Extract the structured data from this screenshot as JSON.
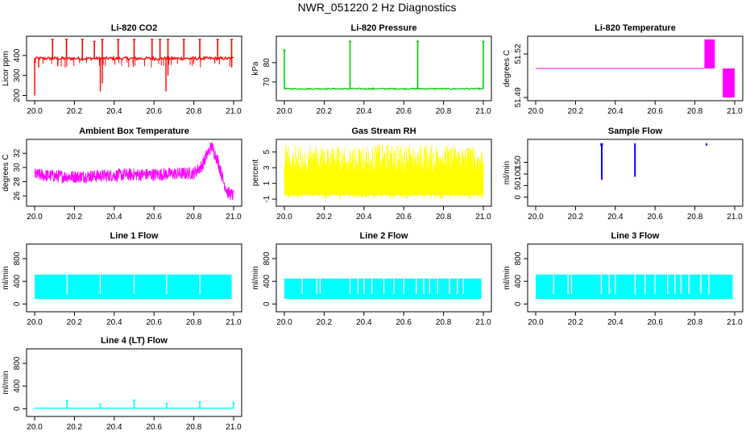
{
  "title": "NWR_051220  2 Hz Diagnostics",
  "colors": {
    "red": "#ff0000",
    "green": "#00cc00",
    "magenta": "#ff00ff",
    "yellow": "#ffff00",
    "blue": "#0000ff",
    "cyan": "#00ffff",
    "axis": "#000000",
    "background": "#ffffff"
  },
  "chart_data": [
    {
      "type": "line",
      "title": "Li-820 CO2",
      "ylabel": "Licor ppm",
      "color": "red",
      "xlim": [
        20.0,
        21.0
      ],
      "ylim": [
        190,
        480
      ],
      "xticks": [
        "20.0",
        "20.2",
        "20.4",
        "20.6",
        "20.8",
        "21.0"
      ],
      "yticks": [
        200,
        300,
        400
      ],
      "baseline": 385,
      "noise": 8,
      "spikes_up": [
        [
          20.09,
          480
        ],
        [
          20.16,
          480
        ],
        [
          20.24,
          480
        ],
        [
          20.3,
          470
        ],
        [
          20.34,
          480
        ],
        [
          20.42,
          480
        ],
        [
          20.5,
          480
        ],
        [
          20.59,
          480
        ],
        [
          20.63,
          480
        ],
        [
          20.67,
          480
        ],
        [
          20.75,
          480
        ],
        [
          20.83,
          480
        ],
        [
          20.92,
          480
        ],
        [
          20.99,
          480
        ]
      ],
      "spikes_down": [
        [
          20.0,
          200
        ],
        [
          20.02,
          340
        ],
        [
          20.33,
          220
        ],
        [
          20.34,
          260
        ],
        [
          20.66,
          220
        ],
        [
          20.67,
          300
        ],
        [
          20.99,
          340
        ]
      ]
    },
    {
      "type": "line",
      "title": "Li-820 Pressure",
      "ylabel": "kPa",
      "color": "green",
      "xlim": [
        20.0,
        21.0
      ],
      "ylim": [
        62,
        92
      ],
      "xticks": [
        "20.0",
        "20.2",
        "20.4",
        "20.6",
        "20.8",
        "21.0"
      ],
      "yticks": [
        70,
        80
      ],
      "baseline": 66.5,
      "noise": 0.3,
      "spikes_up": [
        [
          20.0,
          86.5
        ],
        [
          20.33,
          91
        ],
        [
          20.67,
          91
        ],
        [
          21.0,
          91
        ]
      ],
      "spikes_down": []
    },
    {
      "type": "line",
      "title": "Li-820 Temperature",
      "ylabel": "degrees C",
      "color": "magenta",
      "xlim": [
        20.0,
        21.0
      ],
      "ylim": [
        51.49,
        51.53
      ],
      "xticks": [
        "20.0",
        "20.2",
        "20.4",
        "20.6",
        "20.8",
        "21.0"
      ],
      "yticks": [
        51.49,
        51.52
      ],
      "segments": [
        {
          "x": [
            20.0,
            20.848
          ],
          "y": 51.51
        },
        {
          "x": [
            20.848,
            20.9
          ],
          "y": [
            51.51,
            51.53
          ]
        },
        {
          "x": [
            20.94,
            21.0
          ],
          "y": [
            51.49,
            51.51
          ]
        }
      ]
    },
    {
      "type": "line",
      "title": "Ambient Box Temperature",
      "ylabel": "degrees C",
      "color": "magenta",
      "xlim": [
        20.0,
        21.0
      ],
      "ylim": [
        25,
        33.5
      ],
      "xticks": [
        "20.0",
        "20.2",
        "20.4",
        "20.6",
        "20.8",
        "21.0"
      ],
      "yticks": [
        26,
        28,
        30,
        32
      ],
      "profile": [
        [
          20.0,
          29.0
        ],
        [
          20.1,
          28.8
        ],
        [
          20.2,
          28.7
        ],
        [
          20.3,
          28.8
        ],
        [
          20.4,
          28.9
        ],
        [
          20.5,
          29.0
        ],
        [
          20.6,
          29.0
        ],
        [
          20.7,
          29.1
        ],
        [
          20.8,
          29.2
        ],
        [
          20.84,
          30.2
        ],
        [
          20.87,
          32.0
        ],
        [
          20.89,
          33.0
        ],
        [
          20.92,
          31.0
        ],
        [
          20.95,
          28.0
        ],
        [
          20.97,
          26.5
        ],
        [
          21.0,
          26.0
        ]
      ],
      "noise": 0.9
    },
    {
      "type": "line",
      "title": "Gas Stream RH",
      "ylabel": "percent",
      "color": "yellow",
      "xlim": [
        20.0,
        21.0
      ],
      "ylim": [
        -1.5,
        6.2
      ],
      "xticks": [
        "20.0",
        "20.2",
        "20.4",
        "20.6",
        "20.8",
        "21.0"
      ],
      "yticks": [
        -1,
        1,
        3,
        5
      ],
      "band": [
        -1.0,
        6.0
      ],
      "dense": [
        -0.5,
        2.5
      ]
    },
    {
      "type": "line",
      "title": "Sample Flow",
      "ylabel": "ml/min",
      "color": "blue",
      "xlim": [
        20.0,
        21.0
      ],
      "ylim": [
        -25,
        235
      ],
      "xticks": [
        "20.0",
        "20.2",
        "20.4",
        "20.6",
        "20.8",
        "21.0"
      ],
      "yticks": [
        0,
        50,
        100,
        150
      ],
      "fragments": [
        {
          "x": [
            20.325,
            20.338
          ],
          "y": [
            220,
            232
          ]
        },
        {
          "x": [
            20.328,
            20.335
          ],
          "y": [
            75,
            232
          ]
        },
        {
          "x": [
            20.495,
            20.5
          ],
          "y": [
            88,
            232
          ]
        },
        {
          "x": [
            20.855,
            20.86
          ],
          "y": [
            222,
            232
          ]
        }
      ]
    },
    {
      "type": "area",
      "title": "Line 1 Flow",
      "ylabel": "ml/min",
      "color": "cyan",
      "xlim": [
        20.0,
        21.0
      ],
      "ylim": [
        -80,
        1000
      ],
      "xticks": [
        "20.0",
        "20.2",
        "20.4",
        "20.6",
        "20.8",
        "21.0"
      ],
      "yticks": [
        0,
        400,
        800
      ],
      "band": [
        90,
        520
      ],
      "gaps": [
        20.163,
        20.33,
        20.5,
        20.663,
        20.83
      ]
    },
    {
      "type": "area",
      "title": "Line 2 Flow",
      "ylabel": "ml/min",
      "color": "cyan",
      "xlim": [
        20.0,
        21.0
      ],
      "ylim": [
        -80,
        1000
      ],
      "xticks": [
        "20.0",
        "20.2",
        "20.4",
        "20.6",
        "20.8",
        "21.0"
      ],
      "yticks": [
        0,
        400,
        800
      ],
      "band": [
        90,
        450
      ],
      "gaps": [
        20.163,
        20.33,
        20.5,
        20.663,
        20.83,
        20.09,
        20.18,
        20.37,
        20.4,
        20.44,
        20.55,
        20.6,
        20.7,
        20.73,
        20.77,
        20.87,
        20.9
      ]
    },
    {
      "type": "area",
      "title": "Line 3 Flow",
      "ylabel": "ml/min",
      "color": "cyan",
      "xlim": [
        20.0,
        21.0
      ],
      "ylim": [
        -80,
        1000
      ],
      "xticks": [
        "20.0",
        "20.2",
        "20.4",
        "20.6",
        "20.8",
        "21.0"
      ],
      "yticks": [
        0,
        400,
        800
      ],
      "band": [
        90,
        520
      ],
      "gaps": [
        20.163,
        20.33,
        20.5,
        20.663,
        20.83,
        20.09,
        20.18,
        20.37,
        20.4,
        20.55,
        20.6,
        20.7,
        20.73,
        20.77,
        20.87
      ]
    },
    {
      "type": "line",
      "title": "Line 4 (LT) Flow",
      "ylabel": "ml/min",
      "color": "cyan",
      "xlim": [
        20.0,
        21.0
      ],
      "ylim": [
        -80,
        1000
      ],
      "xticks": [
        "20.0",
        "20.2",
        "20.4",
        "20.6",
        "20.8",
        "21.0"
      ],
      "yticks": [
        0,
        400,
        800
      ],
      "baseline": 10,
      "spikes_up": [
        [
          20.163,
          140
        ],
        [
          20.33,
          80
        ],
        [
          20.5,
          150
        ],
        [
          20.663,
          90
        ],
        [
          20.83,
          120
        ],
        [
          21.0,
          110
        ]
      ],
      "spikes_down": []
    }
  ]
}
